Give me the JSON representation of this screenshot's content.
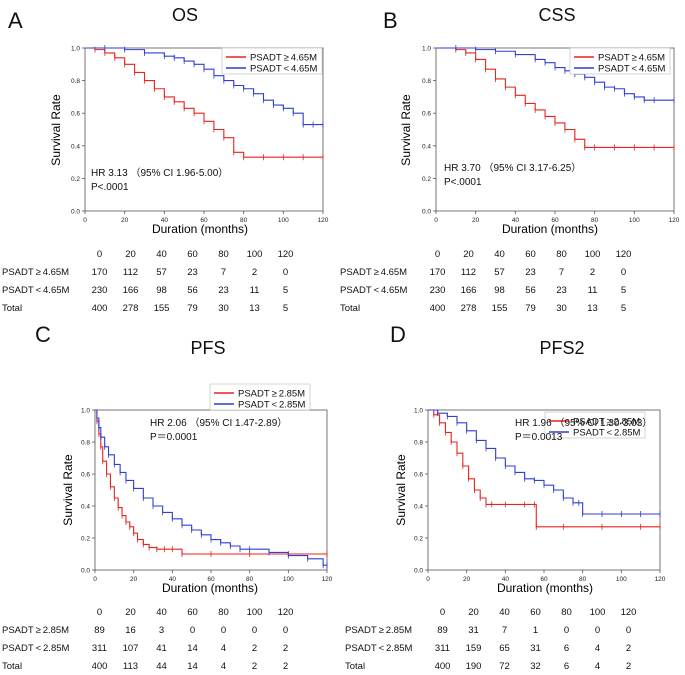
{
  "chart_data": [
    {
      "type": "line",
      "panel": "A",
      "title": "OS",
      "xlabel": "Duration (months)",
      "ylabel": "Survival Rate",
      "xlim": [
        0,
        120
      ],
      "ylim": [
        0,
        1.0
      ],
      "x_ticks": [
        "0",
        "20",
        "40",
        "60",
        "80",
        "100",
        "120"
      ],
      "y_ticks": [
        "0.0",
        "0.2",
        "0.4",
        "0.6",
        "0.8",
        "1.0"
      ],
      "legend": [
        "PSADT ≥ 4.65M",
        "PSADT < 4.65M"
      ],
      "hr_text": "HR 3.13 （95% CI 1.96-5.00）",
      "p_text": "P<.0001",
      "series": [
        {
          "name": "PSADT ≥ 4.65M",
          "color": "#e8231d",
          "x": [
            0,
            5,
            10,
            15,
            20,
            25,
            30,
            35,
            40,
            45,
            50,
            55,
            60,
            65,
            70,
            75,
            80,
            90,
            100,
            110,
            120
          ],
          "y": [
            1.0,
            0.99,
            0.97,
            0.94,
            0.9,
            0.85,
            0.8,
            0.75,
            0.7,
            0.67,
            0.63,
            0.6,
            0.55,
            0.5,
            0.45,
            0.36,
            0.33,
            0.33,
            0.33,
            0.33,
            0.33
          ]
        },
        {
          "name": "PSADT < 4.65M",
          "color": "#2f3fd4",
          "x": [
            0,
            10,
            20,
            30,
            40,
            45,
            50,
            55,
            60,
            65,
            70,
            75,
            80,
            85,
            90,
            95,
            100,
            105,
            110,
            115,
            120
          ],
          "y": [
            1.0,
            1.0,
            0.99,
            0.97,
            0.95,
            0.94,
            0.92,
            0.9,
            0.87,
            0.83,
            0.8,
            0.77,
            0.75,
            0.72,
            0.68,
            0.65,
            0.63,
            0.6,
            0.53,
            0.53,
            0.53
          ]
        }
      ],
      "risk_table": {
        "times": [
          "0",
          "20",
          "40",
          "60",
          "80",
          "100",
          "120"
        ],
        "rows": [
          {
            "label": "PSADT ≥ 4.65M",
            "values": [
              "170",
              "112",
              "57",
              "23",
              "7",
              "2",
              "0"
            ]
          },
          {
            "label": "PSADT < 4.65M",
            "values": [
              "230",
              "166",
              "98",
              "56",
              "23",
              "11",
              "5"
            ]
          },
          {
            "label": "Total",
            "values": [
              "400",
              "278",
              "155",
              "79",
              "30",
              "13",
              "5"
            ]
          }
        ]
      }
    },
    {
      "type": "line",
      "panel": "B",
      "title": "CSS",
      "xlabel": "Duration (months)",
      "ylabel": "Survival Rate",
      "xlim": [
        0,
        120
      ],
      "ylim": [
        0,
        1.0
      ],
      "x_ticks": [
        "0",
        "20",
        "40",
        "60",
        "80",
        "100",
        "120"
      ],
      "y_ticks": [
        "0.0",
        "0.2",
        "0.4",
        "0.6",
        "0.8",
        "1.0"
      ],
      "legend": [
        "PSADT ≥ 4.65M",
        "PSADT < 4.65M"
      ],
      "hr_text": "HR 3.70 （95% CI 3.17-6.25）",
      "p_text": "P<.0001",
      "series": [
        {
          "name": "PSADT ≥ 4.65M",
          "color": "#e8231d",
          "x": [
            0,
            10,
            15,
            20,
            25,
            30,
            35,
            40,
            45,
            50,
            55,
            60,
            65,
            70,
            75,
            80,
            90,
            100,
            110,
            120
          ],
          "y": [
            1.0,
            0.99,
            0.97,
            0.93,
            0.87,
            0.81,
            0.76,
            0.71,
            0.66,
            0.62,
            0.58,
            0.54,
            0.5,
            0.44,
            0.39,
            0.39,
            0.39,
            0.39,
            0.39,
            0.39
          ]
        },
        {
          "name": "PSADT < 4.65M",
          "color": "#2f3fd4",
          "x": [
            0,
            10,
            20,
            30,
            40,
            50,
            55,
            60,
            65,
            70,
            75,
            80,
            85,
            90,
            95,
            100,
            105,
            110,
            120
          ],
          "y": [
            1.0,
            1.0,
            0.99,
            0.98,
            0.96,
            0.93,
            0.91,
            0.88,
            0.86,
            0.84,
            0.82,
            0.79,
            0.76,
            0.75,
            0.72,
            0.7,
            0.68,
            0.68,
            0.68
          ]
        }
      ],
      "risk_table": {
        "times": [
          "0",
          "20",
          "40",
          "60",
          "80",
          "100",
          "120"
        ],
        "rows": [
          {
            "label": "PSADT ≥ 4.65M",
            "values": [
              "170",
              "112",
              "57",
              "23",
              "7",
              "2",
              "0"
            ]
          },
          {
            "label": "PSADT < 4.65M",
            "values": [
              "230",
              "166",
              "98",
              "56",
              "23",
              "11",
              "5"
            ]
          },
          {
            "label": "Total",
            "values": [
              "400",
              "278",
              "155",
              "79",
              "30",
              "13",
              "5"
            ]
          }
        ]
      }
    },
    {
      "type": "line",
      "panel": "C",
      "title": "PFS",
      "xlabel": "Duration (months)",
      "ylabel": "Survival Rate",
      "xlim": [
        0,
        120
      ],
      "ylim": [
        0,
        1.0
      ],
      "x_ticks": [
        "0",
        "20",
        "40",
        "60",
        "80",
        "100",
        "120"
      ],
      "y_ticks": [
        "0.0",
        "0.2",
        "0.4",
        "0.6",
        "0.8",
        "1.0"
      ],
      "legend": [
        "PSADT ≥ 2.85M",
        "PSADT < 2.85M"
      ],
      "hr_text": "HR 2.06 （95% CI 1.47-2.89）",
      "p_text": "P＝0.0001",
      "series": [
        {
          "name": "PSADT ≥ 2.85M",
          "color": "#e8231d",
          "x": [
            0,
            1,
            2,
            3,
            4,
            6,
            8,
            10,
            12,
            14,
            16,
            18,
            20,
            22,
            25,
            28,
            32,
            36,
            40,
            45,
            60,
            80,
            100,
            120
          ],
          "y": [
            1.0,
            0.93,
            0.85,
            0.77,
            0.68,
            0.6,
            0.52,
            0.45,
            0.39,
            0.34,
            0.3,
            0.27,
            0.23,
            0.19,
            0.16,
            0.14,
            0.13,
            0.13,
            0.13,
            0.1,
            0.1,
            0.1,
            0.1,
            0.1
          ]
        },
        {
          "name": "PSADT < 2.85M",
          "color": "#2f3fd4",
          "x": [
            0,
            1,
            2,
            3,
            5,
            7,
            10,
            13,
            16,
            20,
            25,
            30,
            35,
            40,
            45,
            50,
            55,
            60,
            65,
            70,
            75,
            80,
            90,
            100,
            110,
            118,
            120
          ],
          "y": [
            1.0,
            0.95,
            0.89,
            0.83,
            0.77,
            0.72,
            0.66,
            0.61,
            0.56,
            0.51,
            0.45,
            0.4,
            0.36,
            0.32,
            0.28,
            0.25,
            0.22,
            0.19,
            0.17,
            0.15,
            0.13,
            0.13,
            0.11,
            0.09,
            0.07,
            0.03,
            0.03
          ]
        }
      ],
      "risk_table": {
        "times": [
          "0",
          "20",
          "40",
          "60",
          "80",
          "100",
          "120"
        ],
        "rows": [
          {
            "label": "PSADT ≥ 2.85M",
            "values": [
              "89",
              "16",
              "3",
              "0",
              "0",
              "0",
              "0"
            ]
          },
          {
            "label": "PSADT < 2.85M",
            "values": [
              "311",
              "107",
              "41",
              "14",
              "4",
              "2",
              "2"
            ]
          },
          {
            "label": "Total",
            "values": [
              "400",
              "113",
              "44",
              "14",
              "4",
              "2",
              "2"
            ]
          }
        ]
      }
    },
    {
      "type": "line",
      "panel": "D",
      "title": "PFS2",
      "xlabel": "Duration (months)",
      "ylabel": "Survival Rate",
      "xlim": [
        0,
        120
      ],
      "ylim": [
        0,
        1.0
      ],
      "x_ticks": [
        "0",
        "20",
        "40",
        "60",
        "80",
        "100",
        "120"
      ],
      "y_ticks": [
        "0.0",
        "0.2",
        "0.4",
        "0.6",
        "0.8",
        "1.0"
      ],
      "legend": [
        "PSADT ≥ 2.85M",
        "PSADT < 2.85M"
      ],
      "hr_text": "HR 1.96 （95% CI 1.30-3.03）",
      "p_text": "P＝0.0013",
      "series": [
        {
          "name": "PSADT ≥ 2.85M",
          "color": "#e8231d",
          "x": [
            0,
            3,
            6,
            9,
            12,
            15,
            18,
            21,
            24,
            27,
            30,
            33,
            40,
            50,
            55,
            56,
            70,
            90,
            110,
            120
          ],
          "y": [
            1.0,
            0.97,
            0.92,
            0.86,
            0.8,
            0.73,
            0.65,
            0.57,
            0.5,
            0.45,
            0.41,
            0.41,
            0.41,
            0.41,
            0.41,
            0.27,
            0.27,
            0.27,
            0.27,
            0.27
          ]
        },
        {
          "name": "PSADT < 2.85M",
          "color": "#2f3fd4",
          "x": [
            0,
            5,
            10,
            15,
            20,
            25,
            30,
            35,
            40,
            45,
            50,
            55,
            60,
            65,
            70,
            75,
            78,
            80,
            90,
            100,
            110,
            120
          ],
          "y": [
            1.0,
            0.98,
            0.96,
            0.92,
            0.87,
            0.81,
            0.76,
            0.7,
            0.65,
            0.61,
            0.57,
            0.56,
            0.53,
            0.5,
            0.45,
            0.42,
            0.42,
            0.35,
            0.35,
            0.35,
            0.35,
            0.35
          ]
        }
      ],
      "risk_table": {
        "times": [
          "0",
          "20",
          "40",
          "60",
          "80",
          "100",
          "120"
        ],
        "rows": [
          {
            "label": "PSADT ≥ 2.85M",
            "values": [
              "89",
              "31",
              "7",
              "1",
              "0",
              "0",
              "0"
            ]
          },
          {
            "label": "PSADT < 2.85M",
            "values": [
              "311",
              "159",
              "65",
              "31",
              "6",
              "4",
              "2"
            ]
          },
          {
            "label": "Total",
            "values": [
              "400",
              "190",
              "72",
              "32",
              "6",
              "4",
              "2"
            ]
          }
        ]
      }
    }
  ]
}
